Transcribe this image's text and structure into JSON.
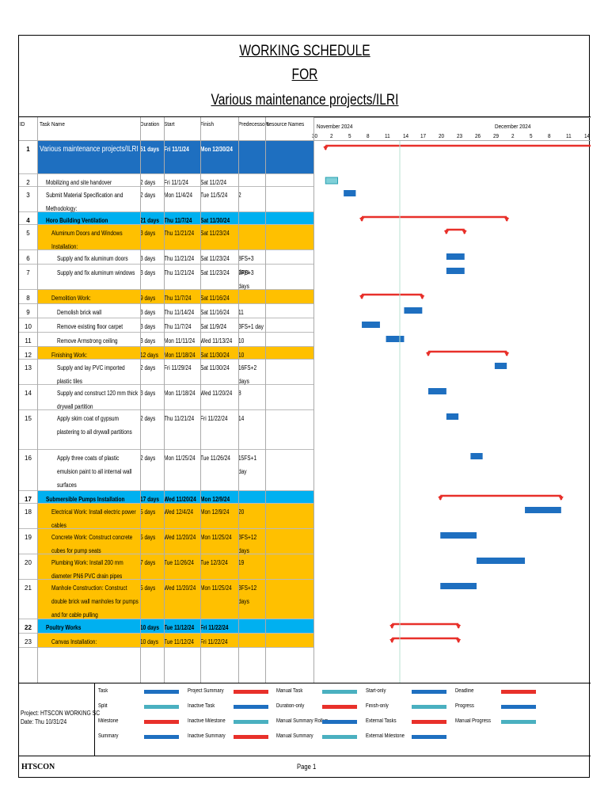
{
  "title": {
    "line1": "WORKING SCHEDULE",
    "line2": "FOR",
    "line3": "Various maintenance projects/ILRI"
  },
  "columns": {
    "id": "ID",
    "name": "Task Name",
    "duration": "Duration",
    "start": "Start",
    "finish": "Finish",
    "pred": "Predecessors",
    "res": "Resource Names"
  },
  "timescale": {
    "months": [
      "November 2024",
      "December 2024"
    ],
    "days": [
      "30",
      "2",
      "5",
      "8",
      "11",
      "14",
      "17",
      "20",
      "23",
      "26",
      "29",
      "2",
      "5",
      "8",
      "11",
      "14"
    ]
  },
  "tasks": [
    {
      "id": "1",
      "name": "Various maintenance projects/ILRI",
      "duration": "51 days",
      "start": "Fri 11/1/24",
      "finish": "Mon 12/30/24",
      "pred": "",
      "style": "project"
    },
    {
      "id": "2",
      "name": "Mobilizing and site handover",
      "duration": "2 days",
      "start": "Fri 11/1/24",
      "finish": "Sat 11/2/24",
      "pred": "",
      "style": "task"
    },
    {
      "id": "3",
      "name": "Submit Material Specification and Methodology:",
      "duration": "2 days",
      "start": "Mon 11/4/24",
      "finish": "Tue 11/5/24",
      "pred": "2",
      "style": "task"
    },
    {
      "id": "4",
      "name": "Horo Building Ventilation",
      "duration": "21 days",
      "start": "Thu 11/7/24",
      "finish": "Sat 11/30/24",
      "pred": "",
      "style": "group"
    },
    {
      "id": "5",
      "name": "Aluminum Doors and Windows Installation:",
      "duration": "3 days",
      "start": "Thu 11/21/24",
      "finish": "Sat 11/23/24",
      "pred": "",
      "style": "sub"
    },
    {
      "id": "6",
      "name": "Supply and fix aluminum doors",
      "duration": "3 days",
      "start": "Thu 11/21/24",
      "finish": "Sat 11/23/24",
      "pred": "8FS+3 days",
      "style": "task2"
    },
    {
      "id": "7",
      "name": "Supply and fix aluminum windows",
      "duration": "3 days",
      "start": "Thu 11/21/24",
      "finish": "Sat 11/23/24",
      "pred": "8FS+3 days",
      "style": "task2"
    },
    {
      "id": "8",
      "name": "Demolition Work:",
      "duration": "9 days",
      "start": "Thu 11/7/24",
      "finish": "Sat 11/16/24",
      "pred": "",
      "style": "sub"
    },
    {
      "id": "9",
      "name": "Demolish brick wall",
      "duration": "3 days",
      "start": "Thu 11/14/24",
      "finish": "Sat 11/16/24",
      "pred": "11",
      "style": "task2"
    },
    {
      "id": "10",
      "name": "Remove existing floor carpet",
      "duration": "3 days",
      "start": "Thu 11/7/24",
      "finish": "Sat 11/9/24",
      "pred": "3FS+1 day",
      "style": "task2"
    },
    {
      "id": "11",
      "name": "Remove Armstrong ceiling",
      "duration": "3 days",
      "start": "Mon 11/11/24",
      "finish": "Wed 11/13/24",
      "pred": "10",
      "style": "task2"
    },
    {
      "id": "12",
      "name": "Finishing Work:",
      "duration": "12 days",
      "start": "Mon 11/18/24",
      "finish": "Sat 11/30/24",
      "pred": "10",
      "style": "sub"
    },
    {
      "id": "13",
      "name": "Supply and lay PVC imported plastic tiles",
      "duration": "2 days",
      "start": "Fri 11/29/24",
      "finish": "Sat 11/30/24",
      "pred": "16FS+2 days",
      "style": "task2"
    },
    {
      "id": "14",
      "name": "Supply and construct 120 mm thick drywall partition",
      "duration": "3 days",
      "start": "Mon 11/18/24",
      "finish": "Wed 11/20/24",
      "pred": "8",
      "style": "task2"
    },
    {
      "id": "15",
      "name": "Apply skim coat of gypsum plastering to all drywall partitions",
      "duration": "2 days",
      "start": "Thu 11/21/24",
      "finish": "Fri 11/22/24",
      "pred": "14",
      "style": "task2"
    },
    {
      "id": "16",
      "name": "Apply three coats of plastic emulsion paint to all internal wall surfaces",
      "duration": "2 days",
      "start": "Mon 11/25/24",
      "finish": "Tue 11/26/24",
      "pred": "15FS+1 day",
      "style": "task2"
    },
    {
      "id": "17",
      "name": "Submersible Pumps Installation",
      "duration": "17 days",
      "start": "Wed 11/20/24",
      "finish": "Mon 12/9/24",
      "pred": "",
      "style": "group"
    },
    {
      "id": "18",
      "name": "Electrical Work: Install electric power cables",
      "duration": "5 days",
      "start": "Wed 12/4/24",
      "finish": "Mon 12/9/24",
      "pred": "20",
      "style": "sub"
    },
    {
      "id": "19",
      "name": "Concrete Work: Construct concrete cubes for pump seats",
      "duration": "5 days",
      "start": "Wed 11/20/24",
      "finish": "Mon 11/25/24",
      "pred": "3FS+12 days",
      "style": "sub"
    },
    {
      "id": "20",
      "name": "Plumbing Work: Install 200 mm diameter PN6 PVC drain pipes",
      "duration": "7 days",
      "start": "Tue 11/26/24",
      "finish": "Tue 12/3/24",
      "pred": "19",
      "style": "sub"
    },
    {
      "id": "21",
      "name": "Manhole Construction: Construct double brick wall manholes for pumps and for cable pulling",
      "duration": "5 days",
      "start": "Wed 11/20/24",
      "finish": "Mon 11/25/24",
      "pred": "3FS+12 days",
      "style": "sub"
    },
    {
      "id": "22",
      "name": "Poultry Works",
      "duration": "10 days",
      "start": "Tue 11/12/24",
      "finish": "Fri 11/22/24",
      "pred": "",
      "style": "group"
    },
    {
      "id": "23",
      "name": "Canvas Installation:",
      "duration": "10 days",
      "start": "Tue 11/12/24",
      "finish": "Fri 11/22/24",
      "pred": "",
      "style": "sub"
    }
  ],
  "legend": {
    "project": "Project: HTSCON WORKING SC",
    "date": "Date: Thu 10/31/24",
    "items": [
      "Task",
      "Project Summary",
      "Manual Task",
      "Start-only",
      "Deadline",
      "Split",
      "Inactive Task",
      "Duration-only",
      "Finish-only",
      "Progress",
      "Milestone",
      "Inactive Milestone",
      "Manual Summary Rollup",
      "External Tasks",
      "Manual Progress",
      "Summary",
      "Inactive Summary",
      "Manual Summary",
      "External Milestone"
    ]
  },
  "footer": {
    "company": "HTSCON",
    "page": "Page 1"
  },
  "colors": {
    "task": "#1e6fc0",
    "summary": "#e8302a",
    "project_row": "#1e6fc0",
    "group_row": "#00b0f0",
    "sub_row": "#ffc000"
  }
}
